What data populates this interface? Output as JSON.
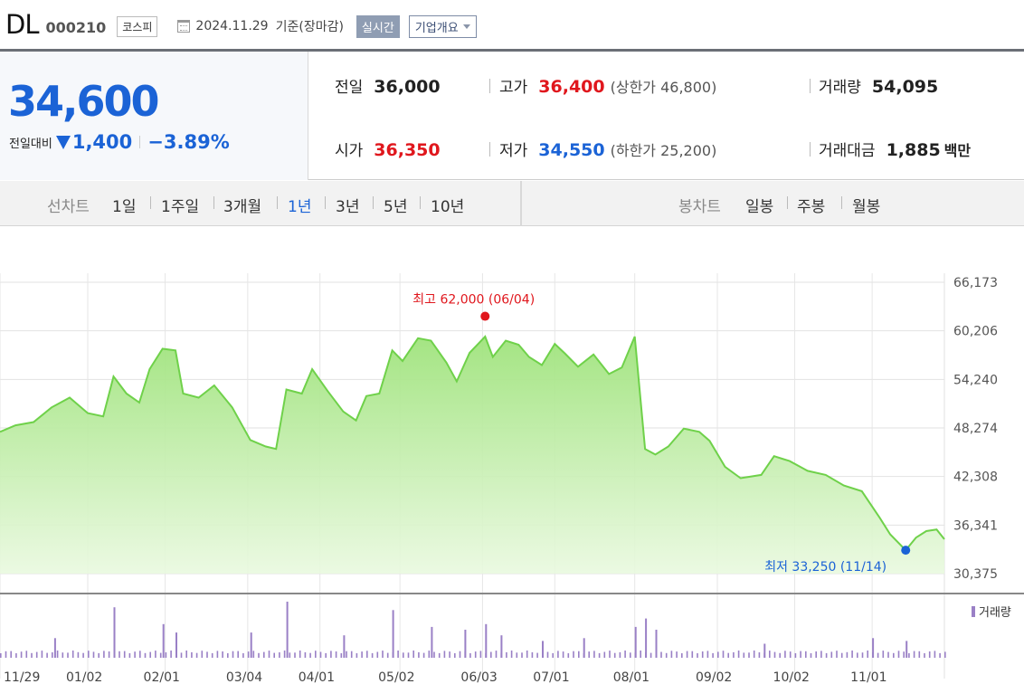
{
  "header": {
    "name": "DL",
    "code": "000210",
    "market": "코스피",
    "date": "2024.11.29",
    "basis": "기준(장마감)",
    "realtime_label": "실시간",
    "company_label": "기업개요"
  },
  "quote": {
    "price": "34,600",
    "change_label": "전일대비",
    "change_amount": "1,400",
    "change_pct": "−3.89%",
    "prev_close_label": "전일",
    "prev_close": "36,000",
    "high_label": "고가",
    "high": "36,400",
    "upper_limit": "(상한가 46,800)",
    "volume_label": "거래량",
    "volume": "54,095",
    "open_label": "시가",
    "open": "36,350",
    "low_label": "저가",
    "low": "34,550",
    "lower_limit": "(하한가 25,200)",
    "turnover_label": "거래대금",
    "turnover": "1,885",
    "turnover_unit": "백만"
  },
  "period_tabs": {
    "line_head": "선차트",
    "line": [
      "1일",
      "1주일",
      "3개월",
      "1년",
      "3년",
      "5년",
      "10년"
    ],
    "active": "1년",
    "candle_head": "봉차트",
    "candle": [
      "일봉",
      "주봉",
      "월봉"
    ]
  },
  "colors": {
    "up": "#e0171d",
    "down": "#1b63d6",
    "line": "#6fd14a",
    "volume": "#9a80c6"
  },
  "chart_data": {
    "type": "area",
    "ylim": [
      30375,
      66173
    ],
    "y_ticks": [
      "66,173",
      "60,206",
      "54,240",
      "48,274",
      "42,308",
      "36,341",
      "30,375"
    ],
    "x_ticks": [
      "11/29",
      "01/02",
      "02/01",
      "03/04",
      "04/01",
      "05/02",
      "06/03",
      "07/01",
      "08/01",
      "09/02",
      "10/02",
      "11/01"
    ],
    "x_start": "2023-11-29",
    "x_end": "2024-11-29",
    "price_series": [
      [
        "2023-11-29",
        47800
      ],
      [
        "2023-12-05",
        48600
      ],
      [
        "2023-12-12",
        49000
      ],
      [
        "2023-12-19",
        50800
      ],
      [
        "2023-12-26",
        52000
      ],
      [
        "2024-01-02",
        50100
      ],
      [
        "2024-01-08",
        49700
      ],
      [
        "2024-01-12",
        54600
      ],
      [
        "2024-01-17",
        52500
      ],
      [
        "2024-01-22",
        51400
      ],
      [
        "2024-01-26",
        55500
      ],
      [
        "2024-01-31",
        58000
      ],
      [
        "2024-02-05",
        57800
      ],
      [
        "2024-02-08",
        52500
      ],
      [
        "2024-02-14",
        52000
      ],
      [
        "2024-02-20",
        53500
      ],
      [
        "2024-02-27",
        50800
      ],
      [
        "2024-03-05",
        46800
      ],
      [
        "2024-03-11",
        46000
      ],
      [
        "2024-03-15",
        45700
      ],
      [
        "2024-03-19",
        53000
      ],
      [
        "2024-03-25",
        52500
      ],
      [
        "2024-03-29",
        55500
      ],
      [
        "2024-04-04",
        52800
      ],
      [
        "2024-04-10",
        50300
      ],
      [
        "2024-04-15",
        49200
      ],
      [
        "2024-04-19",
        52200
      ],
      [
        "2024-04-24",
        52500
      ],
      [
        "2024-04-29",
        57800
      ],
      [
        "2024-05-03",
        56500
      ],
      [
        "2024-05-09",
        59300
      ],
      [
        "2024-05-14",
        59000
      ],
      [
        "2024-05-20",
        56300
      ],
      [
        "2024-05-24",
        54000
      ],
      [
        "2024-05-29",
        57500
      ],
      [
        "2024-06-04",
        59500
      ],
      [
        "2024-06-07",
        57000
      ],
      [
        "2024-06-12",
        59000
      ],
      [
        "2024-06-17",
        58500
      ],
      [
        "2024-06-21",
        57000
      ],
      [
        "2024-06-26",
        56000
      ],
      [
        "2024-07-01",
        58600
      ],
      [
        "2024-07-05",
        57400
      ],
      [
        "2024-07-10",
        55800
      ],
      [
        "2024-07-16",
        57300
      ],
      [
        "2024-07-22",
        54900
      ],
      [
        "2024-07-27",
        55700
      ],
      [
        "2024-08-01",
        59500
      ],
      [
        "2024-08-05",
        45700
      ],
      [
        "2024-08-09",
        45000
      ],
      [
        "2024-08-14",
        46000
      ],
      [
        "2024-08-20",
        48200
      ],
      [
        "2024-08-26",
        47800
      ],
      [
        "2024-08-30",
        46700
      ],
      [
        "2024-09-05",
        43500
      ],
      [
        "2024-09-11",
        42100
      ],
      [
        "2024-09-19",
        42500
      ],
      [
        "2024-09-24",
        44800
      ],
      [
        "2024-09-30",
        44200
      ],
      [
        "2024-10-07",
        43000
      ],
      [
        "2024-10-14",
        42500
      ],
      [
        "2024-10-21",
        41200
      ],
      [
        "2024-10-28",
        40500
      ],
      [
        "2024-11-04",
        37200
      ],
      [
        "2024-11-08",
        35200
      ],
      [
        "2024-11-14",
        33250
      ],
      [
        "2024-11-18",
        34800
      ],
      [
        "2024-11-22",
        35600
      ],
      [
        "2024-11-26",
        35800
      ],
      [
        "2024-11-29",
        34600
      ]
    ],
    "high_label": "최고 62,000 (06/04)",
    "high_point": [
      "2024-06-04",
      62000
    ],
    "low_label": "최저 33,250 (11/14)",
    "low_point": [
      "2024-11-14",
      33250
    ],
    "volume_label": "거래량",
    "volume_series": [
      [
        "2023-12-20",
        35
      ],
      [
        "2024-01-12",
        90
      ],
      [
        "2024-01-31",
        60
      ],
      [
        "2024-02-05",
        45
      ],
      [
        "2024-03-05",
        45
      ],
      [
        "2024-03-19",
        100
      ],
      [
        "2024-04-10",
        40
      ],
      [
        "2024-04-29",
        85
      ],
      [
        "2024-05-14",
        55
      ],
      [
        "2024-05-27",
        50
      ],
      [
        "2024-06-04",
        60
      ],
      [
        "2024-06-10",
        40
      ],
      [
        "2024-06-26",
        30
      ],
      [
        "2024-07-12",
        35
      ],
      [
        "2024-08-01",
        55
      ],
      [
        "2024-08-05",
        70
      ],
      [
        "2024-08-09",
        50
      ],
      [
        "2024-09-20",
        25
      ],
      [
        "2024-11-01",
        35
      ],
      [
        "2024-11-14",
        30
      ]
    ]
  }
}
